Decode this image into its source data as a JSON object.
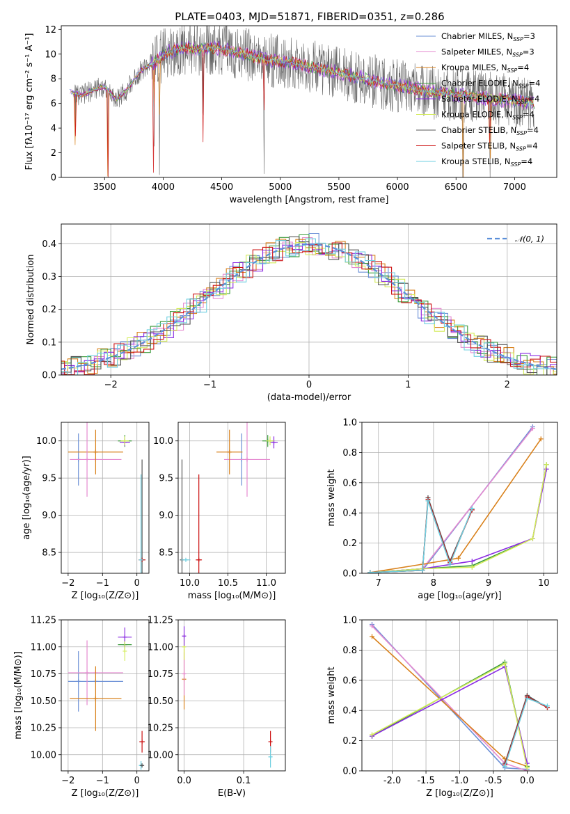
{
  "figure": {
    "title": "PLATE=0403, MJD=51871, FIBERID=0351, z=0.286"
  },
  "chart_data": [
    {
      "id": "spectrum",
      "type": "line",
      "xlabel": "wavelength [Angstrom, rest frame]",
      "ylabel": "Flux [fλ10⁻¹⁷ erg cm⁻² s⁻¹ A⁻¹]",
      "xlim": [
        3130,
        7360
      ],
      "ylim": [
        0,
        12.3
      ],
      "xticks": [
        3500,
        4000,
        4500,
        5000,
        5500,
        6000,
        6500,
        7000
      ],
      "yticks": [
        0,
        2,
        4,
        6,
        8,
        10,
        12
      ],
      "legend_position": "top-right",
      "grid": false,
      "series": [
        {
          "name": "Chabrier MILES, N",
          "sub": "SSP",
          "suffix": "=3",
          "color": "#6a8fd6"
        },
        {
          "name": "Salpeter MILES, N",
          "sub": "SSP",
          "suffix": "=3",
          "color": "#e58ad0"
        },
        {
          "name": "Kroupa MILES, N",
          "sub": "SSP",
          "suffix": "=4",
          "color": "#d9821d"
        },
        {
          "name": "Chabrier ELODIE, N",
          "sub": "SSP",
          "suffix": "=4",
          "color": "#3a9a3a"
        },
        {
          "name": "Salpeter ELODIE, N",
          "sub": "SSP",
          "suffix": "=4",
          "color": "#8a2be2"
        },
        {
          "name": "Kroupa ELODIE, N",
          "sub": "SSP",
          "suffix": "=4",
          "color": "#d4ec5a"
        },
        {
          "name": "Chabrier STELIB, N",
          "sub": "SSP",
          "suffix": "=4",
          "color": "#555555"
        },
        {
          "name": "Salpeter STELIB, N",
          "sub": "SSP",
          "suffix": "=4",
          "color": "#cc1111"
        },
        {
          "name": "Kroupa STELIB, N",
          "sub": "SSP",
          "suffix": "=4",
          "color": "#6ecfe0"
        }
      ],
      "model_curve": {
        "x": [
          3200,
          3300,
          3400,
          3500,
          3600,
          3700,
          3800,
          3900,
          4000,
          4100,
          4200,
          4300,
          4400,
          4500,
          4600,
          4700,
          4800,
          4900,
          5000,
          5100,
          5200,
          5300,
          5400,
          5500,
          5600,
          5700,
          5800,
          5900,
          6000,
          6100,
          6200,
          6300,
          6400,
          6500,
          6600,
          6700,
          6800,
          6900,
          7000,
          7100,
          7160
        ],
        "y": [
          7.0,
          6.6,
          7.1,
          7.4,
          6.3,
          7.2,
          8.6,
          9.2,
          9.9,
          10.4,
          10.5,
          10.4,
          10.5,
          10.4,
          10.2,
          10.0,
          9.7,
          9.5,
          9.4,
          9.3,
          9.1,
          8.9,
          8.7,
          8.5,
          8.2,
          8.1,
          7.8,
          7.6,
          7.4,
          7.3,
          7.1,
          6.9,
          6.8,
          6.7,
          6.6,
          6.5,
          6.4,
          6.3,
          6.2,
          6.1,
          6.0
        ]
      },
      "absorption_dips": [
        3250,
        3530,
        3920,
        3970,
        4340,
        4860,
        6560,
        6790
      ],
      "data_x_range": [
        3200,
        7170
      ]
    },
    {
      "id": "residuals",
      "type": "line",
      "xlabel": "(data-model)/error",
      "ylabel": "Normed distribution",
      "xlim": [
        -2.5,
        2.5
      ],
      "ylim": [
        0,
        0.46
      ],
      "xticks": [
        -2,
        -1,
        0,
        1,
        2
      ],
      "yticks": [
        0.0,
        0.1,
        0.2,
        0.3,
        0.4
      ],
      "grid": true,
      "legend_position": "top-right",
      "reference": {
        "name": "𝒩(0, 1)",
        "mean": 0,
        "sigma": 1,
        "color": "#5b8fd9"
      },
      "hist_bin_width": 0.1
    },
    {
      "id": "age-vs-Z",
      "type": "scatter",
      "xlabel": "Z [log₁₀(Z/Z⊙)]",
      "ylabel": "age  [log₁₀(age/yr)]",
      "xlim": [
        -2.2,
        0.35
      ],
      "ylim": [
        8.22,
        10.25
      ],
      "xticks": [
        -2,
        -1,
        0
      ],
      "yticks": [
        8.5,
        9.0,
        9.5,
        10.0
      ],
      "grid": true,
      "points": [
        {
          "x": -1.7,
          "y": 9.75,
          "xerr": 0.0,
          "yerr": 0.35,
          "color": "#6a8fd6"
        },
        {
          "x": -1.2,
          "y": 9.75,
          "xerr": 0.75,
          "yerr": 0.0,
          "color": "#e58ad0"
        },
        {
          "x": -1.2,
          "y": 9.85,
          "xerr": 0.8,
          "yerr": 0.0,
          "color": "#d9821d"
        },
        {
          "x": -1.45,
          "y": 9.75,
          "xerr": 0.0,
          "yerr": 0.5,
          "color": "#e58ad0"
        },
        {
          "x": -1.2,
          "y": 9.85,
          "xerr": 0.0,
          "yerr": 0.3,
          "color": "#d9821d"
        },
        {
          "x": -0.35,
          "y": 10.0,
          "xerr": 0.2,
          "yerr": 0.08,
          "color": "#3a9a3a"
        },
        {
          "x": -0.35,
          "y": 9.98,
          "xerr": 0.15,
          "yerr": 0.05,
          "color": "#8a2be2"
        },
        {
          "x": -0.35,
          "y": 10.0,
          "xerr": 0.12,
          "yerr": 0.06,
          "color": "#d4ec5a"
        },
        {
          "x": 0.15,
          "y": 8.4,
          "xerr": 0.0,
          "yerr": 1.35,
          "color": "#555555"
        },
        {
          "x": 0.15,
          "y": 8.4,
          "xerr": 0.1,
          "yerr": 0.0,
          "color": "#cc1111"
        },
        {
          "x": 0.12,
          "y": 8.4,
          "xerr": 0.06,
          "yerr": 1.15,
          "color": "#6ecfe0"
        }
      ]
    },
    {
      "id": "age-vs-mass",
      "type": "scatter",
      "xlabel": "mass [log₁₀(M/M⊙)]",
      "ylabel": "",
      "xlim": [
        9.85,
        11.25
      ],
      "ylim": [
        8.22,
        10.25
      ],
      "xticks": [
        10.0,
        10.5,
        11.0
      ],
      "yticks": [
        8.5,
        9.0,
        9.5,
        10.0
      ],
      "grid": true,
      "points": [
        {
          "x": 10.68,
          "y": 9.75,
          "xerr": 0.0,
          "yerr": 0.35,
          "color": "#6a8fd6"
        },
        {
          "x": 10.75,
          "y": 9.75,
          "xerr": 0.3,
          "yerr": 0.0,
          "color": "#e58ad0"
        },
        {
          "x": 10.52,
          "y": 9.85,
          "xerr": 0.17,
          "yerr": 0.0,
          "color": "#d9821d"
        },
        {
          "x": 10.75,
          "y": 9.75,
          "xerr": 0.0,
          "yerr": 0.5,
          "color": "#e58ad0"
        },
        {
          "x": 10.52,
          "y": 9.85,
          "xerr": 0.0,
          "yerr": 0.3,
          "color": "#d9821d"
        },
        {
          "x": 11.02,
          "y": 10.0,
          "xerr": 0.07,
          "yerr": 0.08,
          "color": "#3a9a3a"
        },
        {
          "x": 11.1,
          "y": 9.98,
          "xerr": 0.05,
          "yerr": 0.08,
          "color": "#8a2be2"
        },
        {
          "x": 11.05,
          "y": 10.0,
          "xerr": 0.05,
          "yerr": 0.06,
          "color": "#d4ec5a"
        },
        {
          "x": 9.9,
          "y": 8.4,
          "xerr": 0.0,
          "yerr": 1.35,
          "color": "#555555"
        },
        {
          "x": 10.12,
          "y": 8.4,
          "xerr": 0.04,
          "yerr": 1.15,
          "color": "#cc1111"
        },
        {
          "x": 9.95,
          "y": 8.4,
          "xerr": 0.06,
          "yerr": 0.0,
          "color": "#6ecfe0"
        }
      ]
    },
    {
      "id": "mass-weight-vs-age",
      "type": "line",
      "xlabel": "age  [log₁₀(age/yr)]",
      "ylabel": "mass weight",
      "xlim": [
        6.7,
        10.25
      ],
      "ylim": [
        0,
        1.0
      ],
      "xticks": [
        7,
        8,
        9,
        10
      ],
      "yticks": [
        0.0,
        0.2,
        0.4,
        0.6,
        0.8,
        1.0
      ],
      "grid": true,
      "series": [
        {
          "color": "#6a8fd6",
          "x": [
            6.85,
            7.8,
            9.8
          ],
          "y": [
            0.005,
            0.02,
            0.97
          ]
        },
        {
          "color": "#e58ad0",
          "x": [
            6.85,
            7.8,
            9.8
          ],
          "y": [
            0.005,
            0.03,
            0.96
          ]
        },
        {
          "color": "#d9821d",
          "x": [
            6.85,
            7.8,
            8.45,
            9.95
          ],
          "y": [
            0.005,
            0.06,
            0.1,
            0.89
          ]
        },
        {
          "color": "#3a9a3a",
          "x": [
            6.85,
            7.8,
            8.7,
            9.8,
            10.05
          ],
          "y": [
            0.005,
            0.03,
            0.05,
            0.23,
            0.72
          ]
        },
        {
          "color": "#8a2be2",
          "x": [
            6.85,
            7.8,
            8.7,
            9.8,
            10.05
          ],
          "y": [
            0.005,
            0.03,
            0.08,
            0.23,
            0.69
          ]
        },
        {
          "color": "#d4ec5a",
          "x": [
            6.85,
            7.8,
            8.7,
            9.8,
            10.05
          ],
          "y": [
            0.005,
            0.03,
            0.04,
            0.23,
            0.72
          ]
        },
        {
          "color": "#555555",
          "x": [
            6.85,
            7.8,
            7.9,
            8.3,
            8.7
          ],
          "y": [
            0.005,
            0.02,
            0.5,
            0.08,
            0.42
          ]
        },
        {
          "color": "#cc1111",
          "x": [
            6.85,
            7.8,
            7.9,
            8.3,
            8.7
          ],
          "y": [
            0.005,
            0.02,
            0.49,
            0.07,
            0.42
          ]
        },
        {
          "color": "#6ecfe0",
          "x": [
            6.85,
            7.8,
            7.9,
            8.3,
            8.7
          ],
          "y": [
            0.005,
            0.02,
            0.48,
            0.06,
            0.43
          ]
        }
      ]
    },
    {
      "id": "mass-vs-Z",
      "type": "scatter",
      "xlabel": "Z [log₁₀(Z/Z⊙)]",
      "ylabel": "mass [log₁₀(M/M⊙)]",
      "xlim": [
        -2.2,
        0.35
      ],
      "ylim": [
        9.85,
        11.25
      ],
      "xticks": [
        -2,
        -1,
        0
      ],
      "yticks": [
        10.0,
        10.25,
        10.5,
        10.75,
        11.0,
        11.25
      ],
      "grid": true,
      "points": [
        {
          "x": -1.7,
          "y": 10.68,
          "xerr": 0.0,
          "yerr": 0.28,
          "color": "#6a8fd6"
        },
        {
          "x": -1.2,
          "y": 10.68,
          "xerr": 0.8,
          "yerr": 0.0,
          "color": "#6a8fd6"
        },
        {
          "x": -1.2,
          "y": 10.76,
          "xerr": 0.8,
          "yerr": 0.0,
          "color": "#e58ad0"
        },
        {
          "x": -1.45,
          "y": 10.76,
          "xerr": 0.0,
          "yerr": 0.3,
          "color": "#e58ad0"
        },
        {
          "x": -1.2,
          "y": 10.52,
          "xerr": 0.0,
          "yerr": 0.3,
          "color": "#d9821d"
        },
        {
          "x": -1.2,
          "y": 10.52,
          "xerr": 0.75,
          "yerr": 0.0,
          "color": "#d9821d"
        },
        {
          "x": -0.35,
          "y": 11.02,
          "xerr": 0.2,
          "yerr": 0.05,
          "color": "#3a9a3a"
        },
        {
          "x": -0.35,
          "y": 11.09,
          "xerr": 0.2,
          "yerr": 0.09,
          "color": "#8a2be2"
        },
        {
          "x": -0.35,
          "y": 10.96,
          "xerr": 0.0,
          "yerr": 0.09,
          "color": "#d4ec5a"
        },
        {
          "x": 0.15,
          "y": 10.12,
          "xerr": 0.08,
          "yerr": 0.1,
          "color": "#cc1111"
        },
        {
          "x": 0.12,
          "y": 9.9,
          "xerr": 0.06,
          "yerr": 0.04,
          "color": "#6ecfe0"
        },
        {
          "x": 0.15,
          "y": 9.9,
          "xerr": 0.05,
          "yerr": 0.0,
          "color": "#555555"
        }
      ]
    },
    {
      "id": "mass-vs-EBV",
      "type": "scatter",
      "xlabel": "E(B-V)",
      "ylabel": "",
      "xlim": [
        -0.01,
        0.17
      ],
      "ylim": [
        9.85,
        11.25
      ],
      "xticks": [
        0.0,
        0.1
      ],
      "yticks": [
        10.0,
        10.25,
        10.5,
        10.75,
        11.0,
        11.25
      ],
      "grid": true,
      "points": [
        {
          "x": 0.0,
          "y": 10.7,
          "xerr": 0.0,
          "yerr": 0.28,
          "color": "#d9821d"
        },
        {
          "x": 0.0,
          "y": 10.75,
          "xerr": 0.0,
          "yerr": 0.2,
          "color": "#e58ad0"
        },
        {
          "x": 0.0,
          "y": 11.0,
          "xerr": 0.0,
          "yerr": 0.12,
          "color": "#d4ec5a"
        },
        {
          "x": 0.0,
          "y": 11.1,
          "xerr": 0.0,
          "yerr": 0.09,
          "color": "#8a2be2"
        },
        {
          "x": 0.145,
          "y": 10.12,
          "xerr": 0.0,
          "yerr": 0.1,
          "color": "#cc1111"
        },
        {
          "x": 0.145,
          "y": 9.98,
          "xerr": 0.0,
          "yerr": 0.1,
          "color": "#6ecfe0"
        }
      ]
    },
    {
      "id": "mass-weight-vs-Z",
      "type": "line",
      "xlabel": "Z [log₁₀(Z/Z⊙)]",
      "ylabel": "mass weight",
      "xlim": [
        -2.45,
        0.45
      ],
      "ylim": [
        0,
        1.0
      ],
      "xticks": [
        -2.0,
        -1.5,
        -1.0,
        -0.5,
        0.0
      ],
      "yticks": [
        0.0,
        0.2,
        0.4,
        0.6,
        0.8,
        1.0
      ],
      "grid": true,
      "series": [
        {
          "color": "#6a8fd6",
          "x": [
            -2.3,
            -0.33,
            0.0
          ],
          "y": [
            0.97,
            0.02,
            0.01
          ]
        },
        {
          "color": "#e58ad0",
          "x": [
            -2.3,
            -0.33,
            0.0
          ],
          "y": [
            0.96,
            0.05,
            0.0
          ]
        },
        {
          "color": "#d9821d",
          "x": [
            -2.3,
            -0.33,
            0.0
          ],
          "y": [
            0.89,
            0.08,
            0.03
          ]
        },
        {
          "color": "#3a9a3a",
          "x": [
            -2.3,
            -0.33,
            0.0
          ],
          "y": [
            0.23,
            0.72,
            0.03
          ]
        },
        {
          "color": "#8a2be2",
          "x": [
            -2.3,
            -0.33,
            0.0
          ],
          "y": [
            0.23,
            0.69,
            0.05
          ]
        },
        {
          "color": "#d4ec5a",
          "x": [
            -2.3,
            -0.33,
            0.0
          ],
          "y": [
            0.24,
            0.71,
            0.02
          ]
        },
        {
          "color": "#555555",
          "x": [
            -0.33,
            0.0,
            0.3
          ],
          "y": [
            0.05,
            0.5,
            0.42
          ]
        },
        {
          "color": "#cc1111",
          "x": [
            -0.33,
            0.0,
            0.3
          ],
          "y": [
            0.04,
            0.49,
            0.42
          ]
        },
        {
          "color": "#6ecfe0",
          "x": [
            -0.33,
            0.0,
            0.3
          ],
          "y": [
            0.03,
            0.48,
            0.43
          ]
        }
      ]
    }
  ]
}
